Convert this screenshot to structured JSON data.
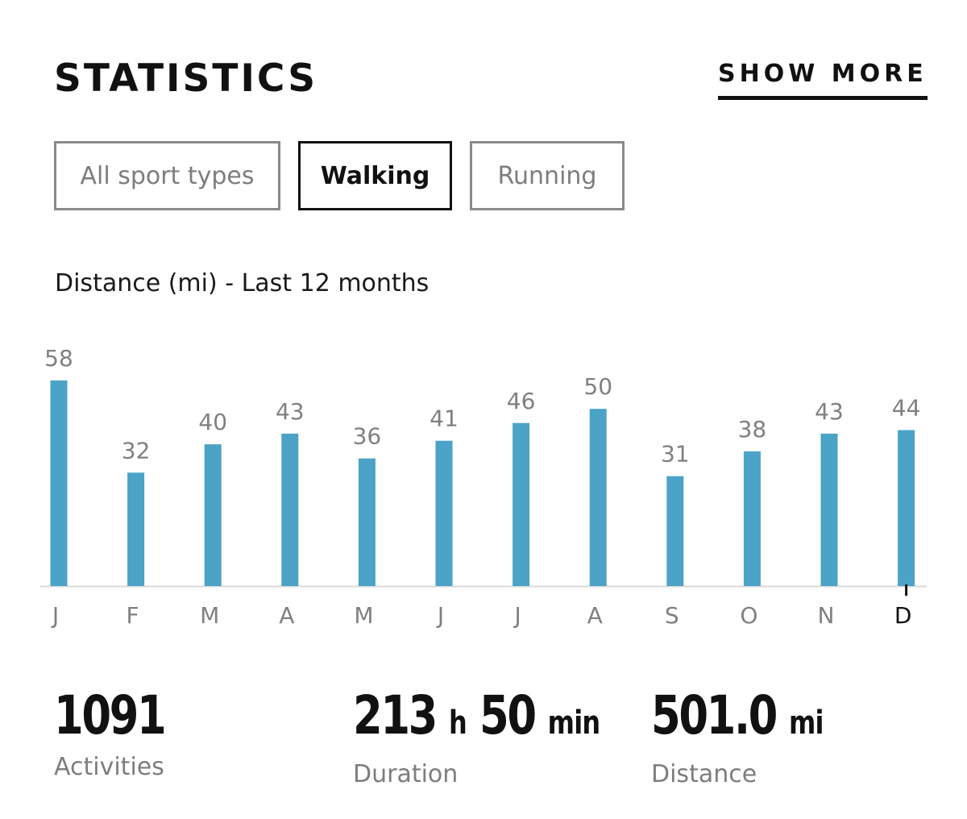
{
  "header": {
    "title": "STATISTICS",
    "show_more_label": "SHOW MORE"
  },
  "tabs": [
    {
      "label": "All sport types",
      "active": false
    },
    {
      "label": "Walking",
      "active": true
    },
    {
      "label": "Running",
      "active": false
    }
  ],
  "colors": {
    "bar": "#4ba3c7",
    "axis": "#d9d9d9",
    "muted_text": "#808080",
    "text": "#111111"
  },
  "chart_data": {
    "type": "bar",
    "title": "Distance (mi) - Last 12 months",
    "categories": [
      "J",
      "F",
      "M",
      "A",
      "M",
      "J",
      "J",
      "A",
      "S",
      "O",
      "N",
      "D"
    ],
    "values": [
      58,
      32,
      40,
      43,
      36,
      41,
      46,
      50,
      31,
      38,
      43,
      44
    ],
    "highlighted_category_index": 11,
    "ylim": [
      0,
      60
    ],
    "grid": false,
    "legend": "none"
  },
  "summary": {
    "activities": {
      "value": "1091",
      "label": "Activities"
    },
    "duration": {
      "hours": "213",
      "hours_unit": "h",
      "minutes": "50",
      "minutes_unit": "min",
      "label": "Duration"
    },
    "distance": {
      "value": "501.0",
      "unit": "mi",
      "label": "Distance"
    }
  }
}
